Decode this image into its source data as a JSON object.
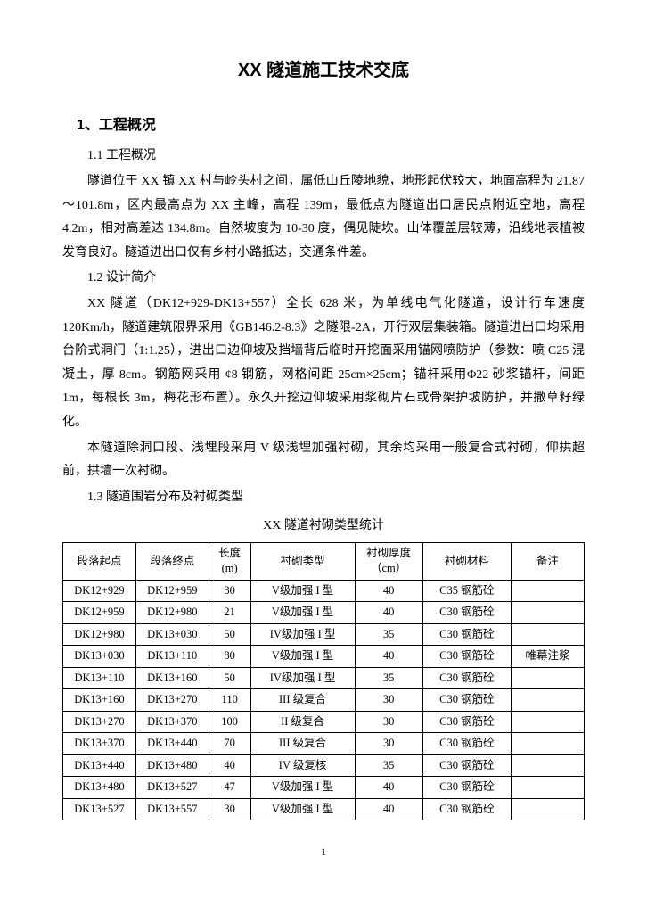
{
  "title": "XX 隧道施工技术交底",
  "section1": {
    "heading": "1、工程概况",
    "sub1_1_heading": "1.1 工程概况",
    "sub1_1_para": "隧道位于 XX 镇 XX 村与岭头村之间，属低山丘陵地貌，地形起伏较大，地面高程为 21.87～101.8m，区内最高点为 XX 主峰，高程 139m，最低点为隧道出口居民点附近空地，高程 4.2m，相对高差达 134.8m。自然坡度为 10-30 度，偶见陡坎。山体覆盖层较薄，沿线地表植被发育良好。隧道进出口仅有乡村小路抵达，交通条件差。",
    "sub1_2_heading": "1.2 设计简介",
    "sub1_2_para1": "XX 隧道（DK12+929-DK13+557）全长 628 米，为单线电气化隧道，设计行车速度 120Km/h，隧道建筑限界采用《GB146.2-8.3》之隧限-2A，开行双层集装箱。隧道进出口均采用台阶式洞门（1:1.25），进出口边仰坡及挡墙背后临时开挖面采用锚网喷防护（参数：喷 C25 混凝土，厚 8cm。钢筋网采用 ¢8 钢筋，网格间距 25cm×25cm；锚杆采用Φ22 砂浆锚杆，间距 1m，每根长 3m，梅花形布置）。永久开挖边仰坡采用浆砌片石或骨架护坡防护，并撒草籽绿化。",
    "sub1_2_para2": "本隧道除洞口段、浅埋段采用 V 级浅埋加强衬砌，其余均采用一般复合式衬砌，仰拱超前，拱墙一次衬砌。",
    "sub1_3_heading": "1.3 隧道围岩分布及衬砌类型",
    "table_title": "XX 隧道衬砌类型统计"
  },
  "table": {
    "columns": [
      "段落起点",
      "段落终点",
      "长度\n(m)",
      "衬砌类型",
      "衬砌厚度\n（cm）",
      "衬砌材料",
      "备注"
    ],
    "col_widths": [
      "14%",
      "14%",
      "8%",
      "20%",
      "13%",
      "17%",
      "14%"
    ],
    "rows": [
      [
        "DK12+929",
        "DK12+959",
        "30",
        "V级加强 I 型",
        "40",
        "C35 钢筋砼",
        ""
      ],
      [
        "DK12+959",
        "DK12+980",
        "21",
        "V级加强 I 型",
        "40",
        "C30 钢筋砼",
        ""
      ],
      [
        "DK12+980",
        "DK13+030",
        "50",
        "IV级加强 I 型",
        "35",
        "C30 钢筋砼",
        ""
      ],
      [
        "DK13+030",
        "DK13+110",
        "80",
        "V级加强 I 型",
        "40",
        "C30 钢筋砼",
        "帷幕注浆"
      ],
      [
        "DK13+110",
        "DK13+160",
        "50",
        "IV级加强 I 型",
        "35",
        "C30 钢筋砼",
        ""
      ],
      [
        "DK13+160",
        "DK13+270",
        "110",
        "III 级复合",
        "30",
        "C30 钢筋砼",
        ""
      ],
      [
        "DK13+270",
        "DK13+370",
        "100",
        "II 级复合",
        "30",
        "C30 钢筋砼",
        ""
      ],
      [
        "DK13+370",
        "DK13+440",
        "70",
        "III 级复合",
        "30",
        "C30 钢筋砼",
        ""
      ],
      [
        "DK13+440",
        "DK13+480",
        "40",
        "IV 级复核",
        "35",
        "C30 钢筋砼",
        ""
      ],
      [
        "DK13+480",
        "DK13+527",
        "47",
        "V级加强 I 型",
        "40",
        "C30 钢筋砼",
        ""
      ],
      [
        "DK13+527",
        "DK13+557",
        "30",
        "V级加强 I 型",
        "40",
        "C30 钢筋砼",
        ""
      ]
    ]
  },
  "page_number": "1"
}
